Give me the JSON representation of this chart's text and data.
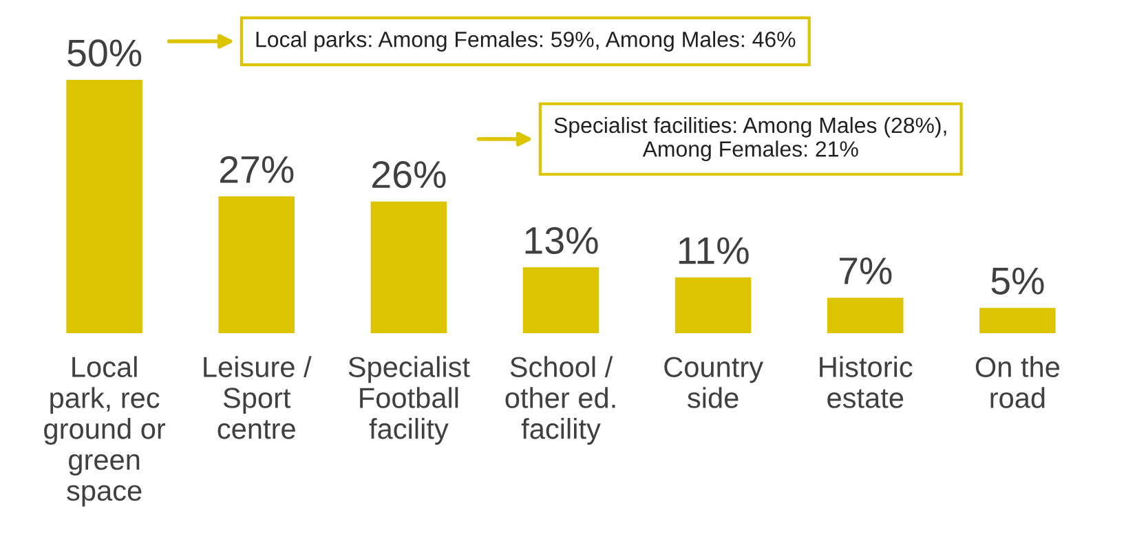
{
  "chart_data": {
    "type": "bar",
    "categories": [
      "Local\npark, rec\nground or\ngreen\nspace",
      "Leisure /\nSport\ncentre",
      "Specialist\nFootball\nfacility",
      "School /\nother ed.\nfacility",
      "Country\nside",
      "Historic\nestate",
      "On the\nroad"
    ],
    "values": [
      50,
      27,
      26,
      13,
      11,
      7,
      5
    ],
    "value_labels": [
      "50%",
      "27%",
      "26%",
      "13%",
      "11%",
      "7%",
      "5%"
    ],
    "color": "#dcc400",
    "ylim": [
      0,
      50
    ],
    "grid": false,
    "legend": false,
    "annotations": [
      "Local parks: Among Females: 59%, Among Males: 46%",
      "Specialist facilities: Among Males (28%),\nAmong Females: 21%"
    ]
  }
}
